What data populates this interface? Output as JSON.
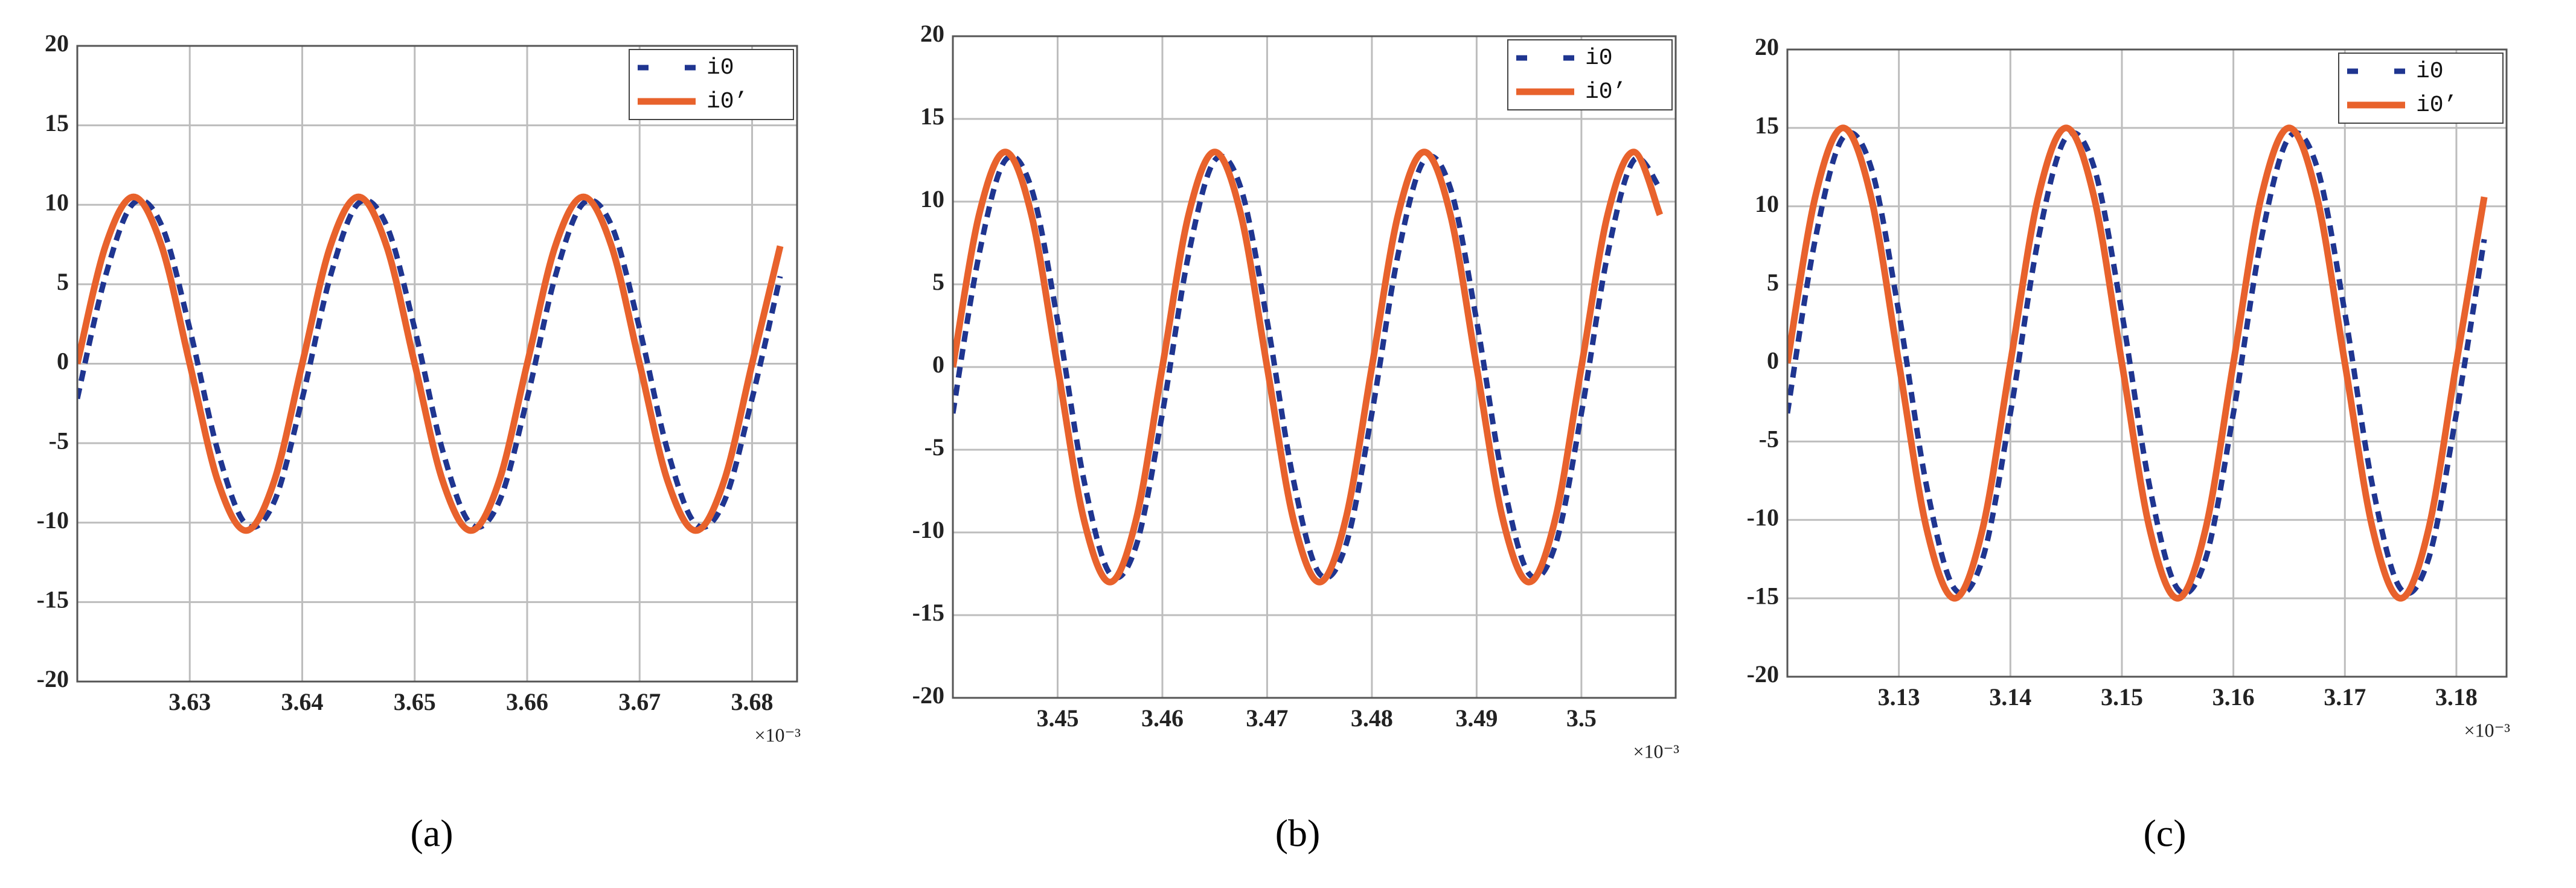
{
  "chart_data": [
    {
      "type": "line",
      "panel_label": "(a)",
      "x_multiplier": "×10⁻³",
      "x": [
        3.62,
        3.6225,
        3.625,
        3.6275,
        3.63,
        3.6325,
        3.635,
        3.6375,
        3.64,
        3.6425,
        3.645,
        3.6475,
        3.65,
        3.6525,
        3.655,
        3.6575,
        3.66,
        3.6625,
        3.665,
        3.6675,
        3.67,
        3.6725,
        3.675,
        3.6775,
        3.68,
        3.6825
      ],
      "series": [
        {
          "name": "i0",
          "color": "#1f3590",
          "dashed": true,
          "values": [
            -2.2,
            5.5,
            10.1,
            8.7,
            2.2,
            -5.5,
            -10.1,
            -8.7,
            -2.2,
            5.5,
            10.1,
            8.7,
            2.2,
            -5.5,
            -10.1,
            -8.7,
            -2.2,
            5.5,
            10.1,
            8.7,
            2.2,
            -5.5,
            -10.1,
            -8.7,
            -2.2,
            5.5
          ]
        },
        {
          "name": "i0’",
          "color": "#e8622c",
          "dashed": false,
          "values": [
            0,
            7.4,
            10.5,
            7.4,
            0,
            -7.4,
            -10.5,
            -7.4,
            0,
            7.4,
            10.5,
            7.4,
            0,
            -7.4,
            -10.5,
            -7.4,
            0,
            7.4,
            10.5,
            7.4,
            0,
            -7.4,
            -10.5,
            -7.4,
            0,
            7.4
          ]
        }
      ],
      "xlim": [
        3.62,
        3.684
      ],
      "xticks": [
        3.63,
        3.64,
        3.65,
        3.66,
        3.67,
        3.68
      ],
      "ylim": [
        -20,
        20
      ],
      "yticks": [
        -20,
        -15,
        -10,
        -5,
        0,
        5,
        10,
        15,
        20
      ],
      "grid": true,
      "legend": "upper right"
    },
    {
      "type": "line",
      "panel_label": "(b)",
      "x_multiplier": "×10⁻³",
      "x": [
        3.44,
        3.4425,
        3.445,
        3.4475,
        3.45,
        3.4525,
        3.455,
        3.4575,
        3.46,
        3.4625,
        3.465,
        3.4675,
        3.47,
        3.4725,
        3.475,
        3.4775,
        3.48,
        3.4825,
        3.485,
        3.4875,
        3.49,
        3.4925,
        3.495,
        3.4975,
        3.5,
        3.5025,
        3.505,
        3.5075
      ],
      "series": [
        {
          "name": "i0",
          "color": "#1f3590",
          "dashed": true,
          "values": [
            -2.8,
            6.8,
            12.5,
            10.8,
            2.8,
            -6.8,
            -12.5,
            -10.8,
            -2.8,
            6.8,
            12.5,
            10.8,
            2.8,
            -6.8,
            -12.5,
            -10.8,
            -2.8,
            6.8,
            12.5,
            10.8,
            2.8,
            -6.8,
            -12.5,
            -10.8,
            -2.8,
            6.8,
            12.5,
            10.8
          ]
        },
        {
          "name": "i0’",
          "color": "#e8622c",
          "dashed": false,
          "values": [
            0,
            9.2,
            13,
            9.2,
            0,
            -9.2,
            -13,
            -9.2,
            0,
            9.2,
            13,
            9.2,
            0,
            -9.2,
            -13,
            -9.2,
            0,
            9.2,
            13,
            9.2,
            0,
            -9.2,
            -13,
            -9.2,
            0,
            9.2,
            13,
            9.2
          ]
        }
      ],
      "xlim": [
        3.44,
        3.509
      ],
      "xticks": [
        3.45,
        3.46,
        3.47,
        3.48,
        3.49,
        3.5
      ],
      "ylim": [
        -20,
        20
      ],
      "yticks": [
        -20,
        -15,
        -10,
        -5,
        0,
        5,
        10,
        15,
        20
      ],
      "grid": true,
      "legend": "upper right"
    },
    {
      "type": "line",
      "panel_label": "(c)",
      "x_multiplier": "×10⁻³",
      "x": [
        3.12,
        3.1225,
        3.125,
        3.1275,
        3.13,
        3.1325,
        3.135,
        3.1375,
        3.14,
        3.1425,
        3.145,
        3.1475,
        3.15,
        3.1525,
        3.155,
        3.1575,
        3.16,
        3.1625,
        3.165,
        3.1675,
        3.17,
        3.1725,
        3.175,
        3.1775,
        3.18,
        3.1825
      ],
      "series": [
        {
          "name": "i0",
          "color": "#1f3590",
          "dashed": true,
          "values": [
            -3.2,
            7.9,
            14.4,
            12.5,
            3.2,
            -7.9,
            -14.4,
            -12.5,
            -3.2,
            7.9,
            14.4,
            12.5,
            3.2,
            -7.9,
            -14.4,
            -12.5,
            -3.2,
            7.9,
            14.4,
            12.5,
            3.2,
            -7.9,
            -14.4,
            -12.5,
            -3.2,
            7.9
          ]
        },
        {
          "name": "i0’",
          "color": "#e8622c",
          "dashed": false,
          "values": [
            0,
            10.6,
            15,
            10.6,
            0,
            -10.6,
            -15,
            -10.6,
            0,
            10.6,
            15,
            10.6,
            0,
            -10.6,
            -15,
            -10.6,
            0,
            10.6,
            15,
            10.6,
            0,
            -10.6,
            -15,
            -10.6,
            0,
            10.6
          ]
        }
      ],
      "xlim": [
        3.12,
        3.1845
      ],
      "xticks": [
        3.13,
        3.14,
        3.15,
        3.16,
        3.17,
        3.18
      ],
      "ylim": [
        -20,
        20
      ],
      "yticks": [
        -20,
        -15,
        -10,
        -5,
        0,
        5,
        10,
        15,
        20
      ],
      "grid": true,
      "legend": "upper right"
    }
  ]
}
